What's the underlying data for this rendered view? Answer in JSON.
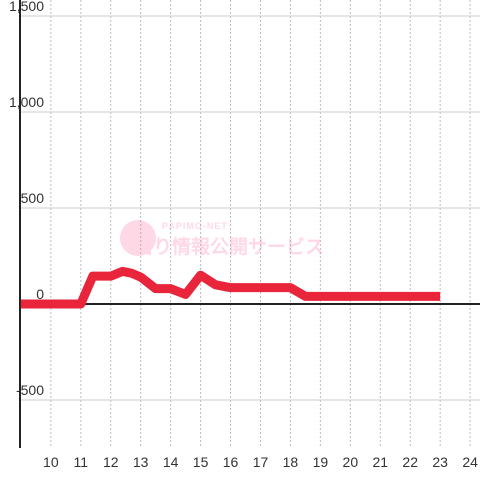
{
  "chart_data": {
    "type": "line",
    "watermark": {
      "brand": "PAPIMO-NET",
      "text": "当り情報公開サービス"
    },
    "x": [
      9,
      11,
      11.4,
      12,
      12.4,
      12.7,
      13,
      13.5,
      14,
      14.5,
      15,
      15.5,
      16,
      16.5,
      17,
      17.5,
      18,
      18.5,
      19,
      20,
      21,
      22,
      23
    ],
    "series": [
      {
        "color": "#e8253a",
        "values": [
          0,
          0,
          145,
          145,
          170,
          160,
          140,
          80,
          80,
          50,
          150,
          100,
          85,
          85,
          85,
          85,
          85,
          40,
          40,
          40,
          40,
          40,
          40
        ]
      }
    ],
    "xlim": [
      8.97,
      24.33
    ],
    "xticks": [
      10,
      11,
      12,
      13,
      14,
      15,
      16,
      17,
      18,
      19,
      20,
      21,
      22,
      23,
      24
    ],
    "ylim": [
      -750,
      1500
    ],
    "yticks": [
      {
        "value": 1500,
        "label": "1,500"
      },
      {
        "value": 1000,
        "label": "1,000"
      },
      500,
      0,
      -500
    ],
    "grid": true
  }
}
